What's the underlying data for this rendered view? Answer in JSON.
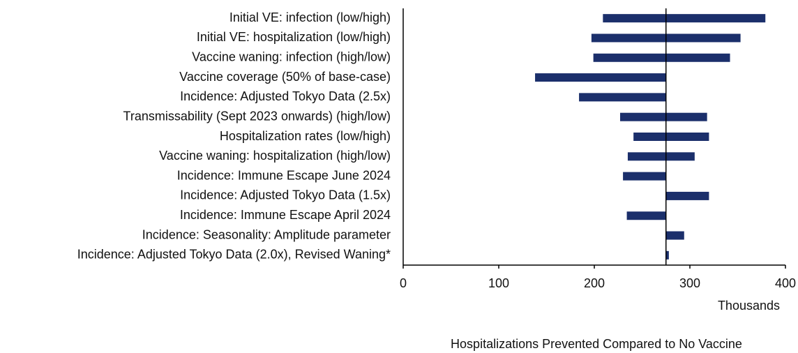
{
  "chart_data": {
    "type": "tornado",
    "categories": [
      "Initial VE: infection (low/high)",
      "Initial VE: hospitalization (low/high)",
      "Vaccine waning: infection (high/low)",
      "Vaccine coverage (50% of base-case)",
      "Incidence: Adjusted Tokyo Data (2.5x)",
      "Transmissability (Sept 2023 onwards) (high/low)",
      "Hospitalization rates (low/high)",
      "Vaccine waning: hospitalization (high/low)",
      "Incidence: Immune Escape June 2024",
      "Incidence: Adjusted Tokyo Data (1.5x)",
      "Incidence: Immune Escape April 2024",
      "Incidence: Seasonality: Amplitude parameter",
      "Incidence: Adjusted Tokyo Data (2.0x), Revised Waning*"
    ],
    "low": [
      209,
      197,
      199,
      138,
      184,
      227,
      241,
      235,
      230,
      275,
      234,
      275,
      275
    ],
    "high": [
      379,
      353,
      342,
      275,
      275,
      318,
      320,
      305,
      275,
      320,
      275,
      294,
      278
    ],
    "base": 275,
    "color": "#1b2f6b",
    "xlim": [
      0,
      400
    ],
    "xticks": [
      0,
      100,
      200,
      300,
      400
    ],
    "x_unit_label": "Thousands",
    "xlabel": "Hospitalizations Prevented Compared to No Vaccine"
  }
}
